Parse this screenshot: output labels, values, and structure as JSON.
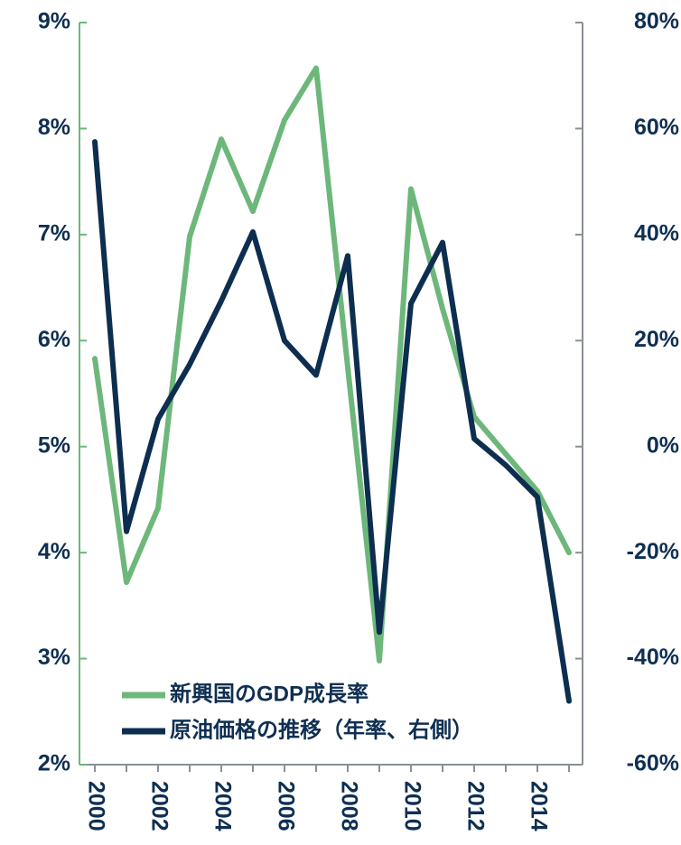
{
  "chart_data": {
    "type": "line",
    "categories": [
      "2000",
      null,
      "2002",
      null,
      "2004",
      null,
      "2006",
      null,
      "2008",
      null,
      "2010",
      null,
      "2012",
      null,
      "2014",
      null
    ],
    "series": [
      {
        "name": "新興国のGDP成長率",
        "color": "#6db77b",
        "axis": "y",
        "values": [
          5.83,
          3.72,
          4.42,
          6.98,
          7.9,
          7.22,
          8.08,
          8.57,
          5.75,
          2.98,
          7.43,
          6.3,
          5.28,
          4.93,
          4.58,
          4.0
        ]
      },
      {
        "name": "原油価格の推移（年率、右側）",
        "color": "#0d2e4f",
        "axis": "y2",
        "values": [
          57.5,
          -16,
          5.2,
          15.5,
          27.5,
          40.5,
          20,
          13.5,
          36,
          -35,
          27,
          38.5,
          1.5,
          -3.5,
          -9.5,
          -48
        ]
      }
    ],
    "ylim": [
      2,
      9
    ],
    "yticks": [
      {
        "value": 2,
        "label": "2%"
      },
      {
        "value": 3,
        "label": "3%"
      },
      {
        "value": 4,
        "label": "4%"
      },
      {
        "value": 5,
        "label": "5%"
      },
      {
        "value": 6,
        "label": "6%"
      },
      {
        "value": 7,
        "label": "7%"
      },
      {
        "value": 8,
        "label": "8%"
      },
      {
        "value": 9,
        "label": "9%"
      }
    ],
    "y2lim": [
      -60,
      80
    ],
    "y2ticks": [
      {
        "value": -60,
        "label": "-60%"
      },
      {
        "value": -40,
        "label": "-40%"
      },
      {
        "value": -20,
        "label": "-20%"
      },
      {
        "value": 0,
        "label": "0%"
      },
      {
        "value": 20,
        "label": "20%"
      },
      {
        "value": 40,
        "label": "40%"
      },
      {
        "value": 60,
        "label": "60%"
      },
      {
        "value": 80,
        "label": "80%"
      }
    ],
    "legend": "lower left"
  }
}
